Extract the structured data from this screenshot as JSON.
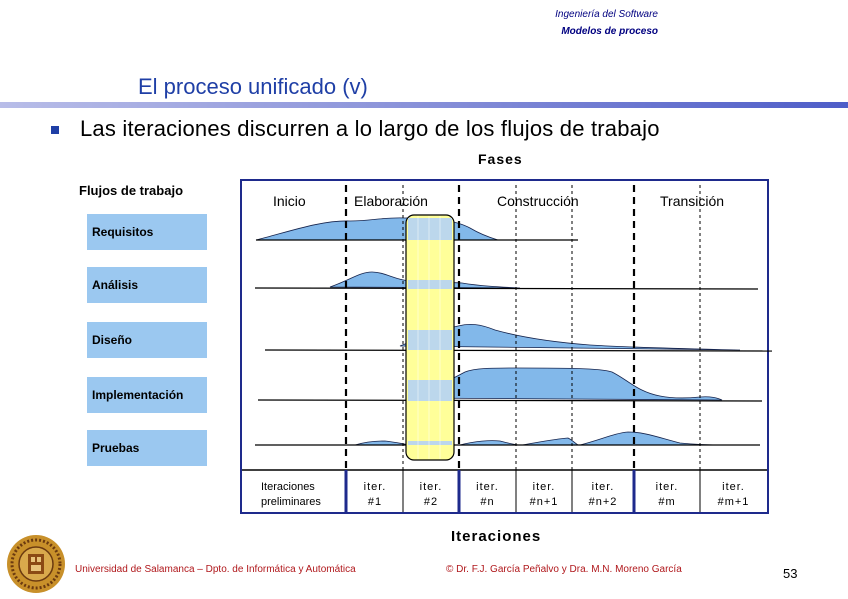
{
  "header": {
    "line1": "Ingeniería del Software",
    "line2": "Modelos de proceso"
  },
  "title": "El proceso unificado (v)",
  "bullet": "Las iteraciones discurren a lo largo de los flujos de trabajo",
  "diagram": {
    "top_label": "Fases",
    "left_label": "Flujos de trabajo",
    "bottom_label": "Iteraciones",
    "phases": [
      "Inicio",
      "Elaboración",
      "Construcción",
      "Transición"
    ],
    "workflows": [
      "Requisitos",
      "Análisis",
      "Diseño",
      "Implementación",
      "Pruebas"
    ],
    "iterations": [
      {
        "line1": "Iteraciones",
        "line2": "preliminares"
      },
      {
        "line1": "iter.",
        "line2": "#1"
      },
      {
        "line1": "iter.",
        "line2": "#2"
      },
      {
        "line1": "iter.",
        "line2": "#n"
      },
      {
        "line1": "iter.",
        "line2": "#n+1"
      },
      {
        "line1": "iter.",
        "line2": "#n+2"
      },
      {
        "line1": "iter.",
        "line2": "#m"
      },
      {
        "line1": "iter.",
        "line2": "#m+1"
      }
    ],
    "colors": {
      "area": "#82b8ea",
      "highlight": "#ffff99",
      "box_border": "#1e2a8c",
      "workflow_box": "#9bc8f0"
    }
  },
  "footer": {
    "left": "Universidad de Salamanca – Dpto. de Informática y Automática",
    "right": "© Dr. F.J. García Peñalvo y Dra. M.N. Moreno García",
    "page": "53"
  },
  "logo": {
    "icon": "university-seal-icon"
  }
}
